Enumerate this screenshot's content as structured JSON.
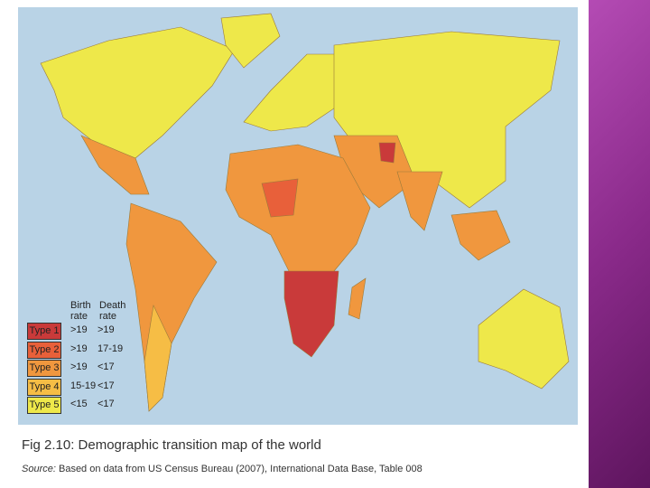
{
  "legend": {
    "headers": [
      "Birth rate",
      "Death rate"
    ],
    "rows": [
      {
        "type": "Type 1",
        "birth": ">19",
        "death": ">19",
        "color": "#c93a3a"
      },
      {
        "type": "Type 2",
        "birth": ">19",
        "death": "17-19",
        "color": "#e8603a"
      },
      {
        "type": "Type 3",
        "birth": ">19",
        "death": "<17",
        "color": "#f0973e"
      },
      {
        "type": "Type 4",
        "birth": "15-19",
        "death": "<17",
        "color": "#f6bd45"
      },
      {
        "type": "Type 5",
        "birth": "<15",
        "death": "<17",
        "color": "#eee84a"
      }
    ]
  },
  "caption": "Fig 2.10: Demographic transition map of the world",
  "source": {
    "label": "Source:",
    "text": "Based on data from US Census Bureau (2007), International Data Base, Table 008"
  }
}
